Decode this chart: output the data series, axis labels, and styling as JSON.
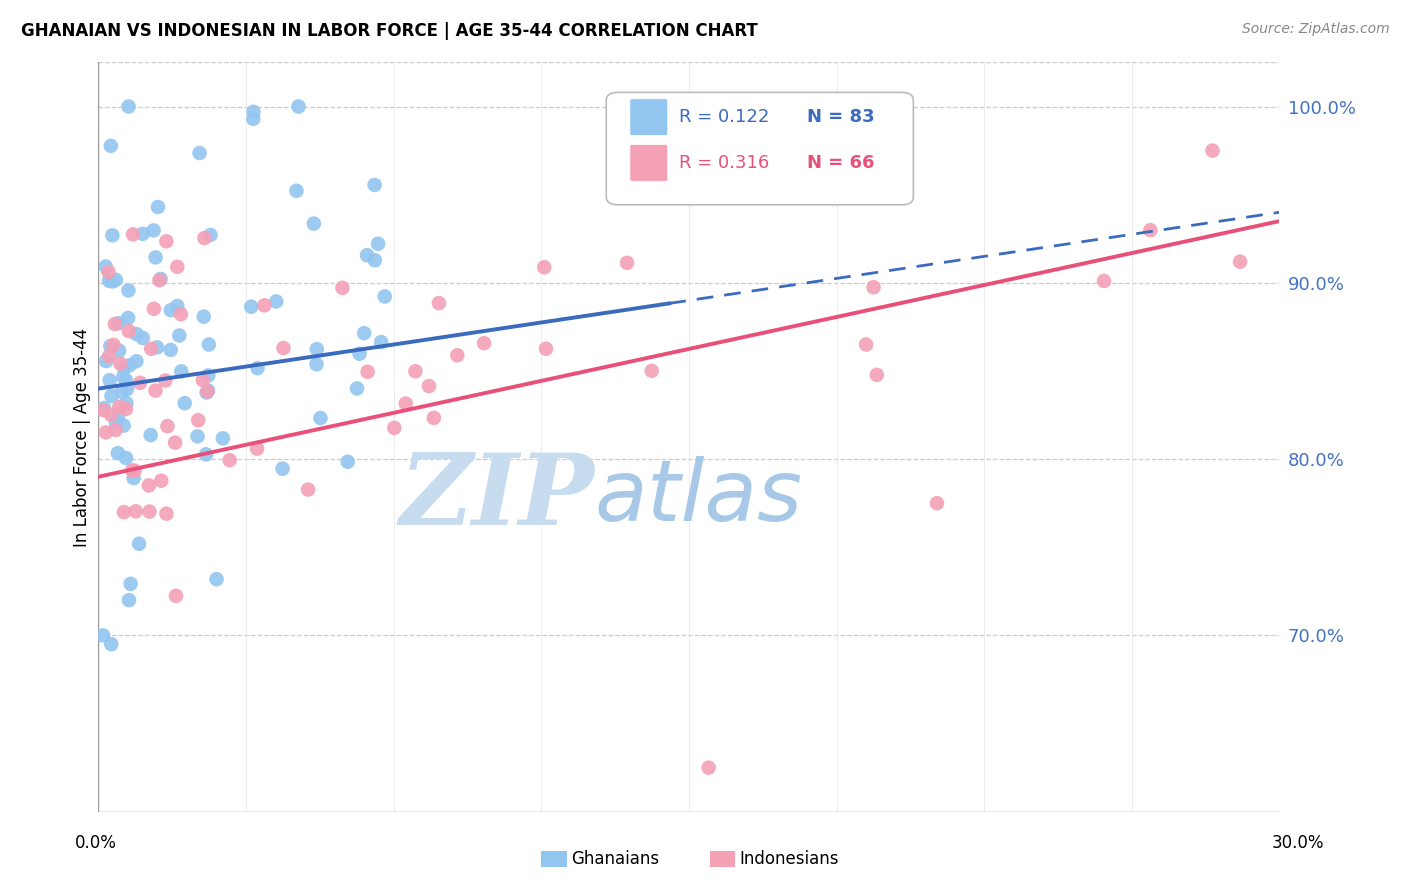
{
  "title": "GHANAIAN VS INDONESIAN IN LABOR FORCE | AGE 35-44 CORRELATION CHART",
  "source": "Source: ZipAtlas.com",
  "ylabel": "In Labor Force | Age 35-44",
  "xlim": [
    0.0,
    0.3
  ],
  "ylim": [
    0.6,
    1.025
  ],
  "yticks": [
    0.7,
    0.8,
    0.9,
    1.0
  ],
  "ytick_labels": [
    "70.0%",
    "80.0%",
    "90.0%",
    "100.0%"
  ],
  "ghanaian_color": "#92C5F0",
  "indonesian_color": "#F4A0B5",
  "trendline_ghanaian_color": "#3A6BBF",
  "trendline_indonesian_color": "#E8507A",
  "watermark_zip": "ZIP",
  "watermark_atlas": "atlas",
  "watermark_color_zip": "#C8DCF0",
  "watermark_color_atlas": "#A0C8E8",
  "background_color": "#FFFFFF",
  "grid_color": "#CCCCCC",
  "title_fontsize": 12,
  "source_fontsize": 10,
  "tick_fontsize": 13,
  "ylabel_fontsize": 12
}
